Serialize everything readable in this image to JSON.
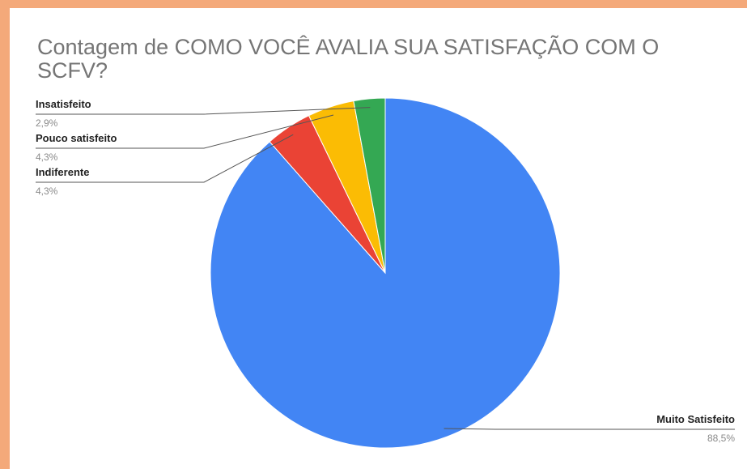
{
  "chart_data": {
    "type": "pie",
    "title": "Contagem de COMO VOCÊ AVALIA SUA SATISFAÇÃO COM O SCFV?",
    "slices": [
      {
        "label": "Muito Satisfeito",
        "value": 88.5,
        "value_label": "88,5%",
        "color": "#4285f4"
      },
      {
        "label": "Indiferente",
        "value": 4.3,
        "value_label": "4,3%",
        "color": "#ea4335"
      },
      {
        "label": "Pouco satisfeito",
        "value": 4.3,
        "value_label": "4,3%",
        "color": "#fbbc04"
      },
      {
        "label": "Insatisfeito",
        "value": 2.9,
        "value_label": "2,9%",
        "color": "#34a853"
      }
    ],
    "legend": "none",
    "labels": "outside-with-leader-lines"
  }
}
